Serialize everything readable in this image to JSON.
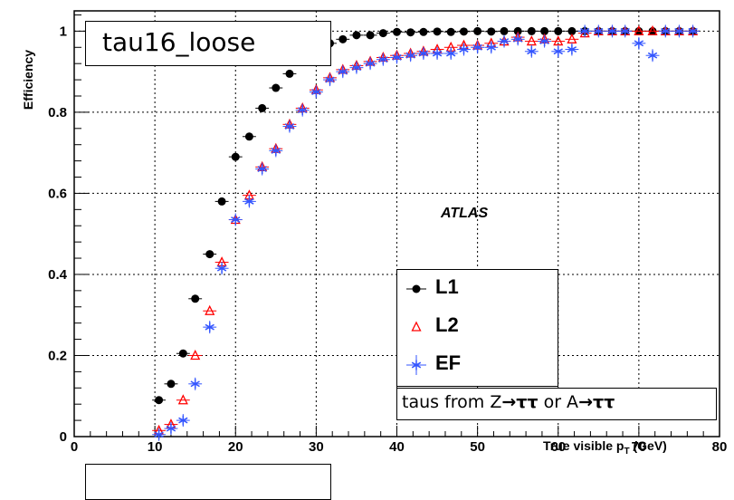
{
  "chart_data": {
    "type": "scatter",
    "title": "tau16_loose",
    "xlabel": "True visible p",
    "xlabel_sub": "T",
    "xlabel_unit": " (GeV)",
    "ylabel": "Efficiency",
    "xlim": [
      0,
      80
    ],
    "ylim": [
      0,
      1.05
    ],
    "xticks": [
      0,
      10,
      20,
      30,
      40,
      50,
      60,
      70,
      80
    ],
    "yticks": [
      0,
      0.2,
      0.4,
      0.6,
      0.8,
      1
    ],
    "ytick_labels": [
      "0",
      "0.2",
      "0.4",
      "0.6",
      "0.8",
      "1"
    ],
    "grid": true,
    "annotation": "ATLAS",
    "legend_position": "center-right",
    "note": {
      "prefix": "taus from Z",
      "arrow": "→",
      "tt": "ττ",
      "or": " or A"
    },
    "series": [
      {
        "name": "L1",
        "color": "#000000",
        "marker": "circle",
        "x": [
          10.5,
          12,
          13.5,
          15,
          16.8,
          18.3,
          20,
          21.7,
          23.3,
          25,
          26.7,
          28.3,
          30,
          31.7,
          33.3,
          35,
          36.7,
          38.3,
          40,
          41.7,
          43.3,
          45,
          46.7,
          48.3,
          50,
          51.7,
          53.3,
          55,
          56.7,
          58.3,
          60,
          61.7,
          63.3,
          65,
          66.7,
          68.3,
          70,
          71.7,
          73.3,
          75,
          76.7
        ],
        "y": [
          0.09,
          0.13,
          0.205,
          0.34,
          0.45,
          0.58,
          0.69,
          0.74,
          0.81,
          0.86,
          0.895,
          0.93,
          0.955,
          0.97,
          0.98,
          0.99,
          0.99,
          0.995,
          0.998,
          0.997,
          0.998,
          0.999,
          0.998,
          0.999,
          1.0,
          0.999,
          1.0,
          1.0,
          1.0,
          1.0,
          1.0,
          1.0,
          1.0,
          1.0,
          1.0,
          1.0,
          1.0,
          1.0,
          1.0,
          1.0,
          1.0
        ]
      },
      {
        "name": "L2",
        "color": "#ff0000",
        "marker": "triangle-open",
        "x": [
          10.5,
          12,
          13.5,
          15,
          16.8,
          18.3,
          20,
          21.7,
          23.3,
          25,
          26.7,
          28.3,
          30,
          31.7,
          33.3,
          35,
          36.7,
          38.3,
          40,
          41.7,
          43.3,
          45,
          46.7,
          48.3,
          50,
          51.7,
          53.3,
          55,
          56.7,
          58.3,
          60,
          61.7,
          63.3,
          65,
          66.7,
          68.3,
          70,
          71.7,
          73.3,
          75,
          76.7
        ],
        "y": [
          0.015,
          0.03,
          0.09,
          0.2,
          0.31,
          0.43,
          0.535,
          0.595,
          0.665,
          0.71,
          0.77,
          0.81,
          0.855,
          0.885,
          0.905,
          0.915,
          0.925,
          0.935,
          0.94,
          0.945,
          0.95,
          0.955,
          0.96,
          0.965,
          0.965,
          0.97,
          0.975,
          0.985,
          0.975,
          0.98,
          0.975,
          0.98,
          0.995,
          1.0,
          1.0,
          1.0,
          1.0,
          1.0,
          1.0,
          1.0,
          1.0
        ]
      },
      {
        "name": "EF",
        "color": "#3355ff",
        "marker": "star",
        "x": [
          10.5,
          12,
          13.5,
          15,
          16.8,
          18.3,
          20,
          21.7,
          23.3,
          25,
          26.7,
          28.3,
          30,
          31.7,
          33.3,
          35,
          36.7,
          38.3,
          40,
          41.7,
          43.3,
          45,
          46.7,
          48.3,
          50,
          51.7,
          53.3,
          55,
          56.7,
          58.3,
          60,
          61.7,
          63.3,
          65,
          66.7,
          68.3,
          70,
          71.7,
          73.3,
          75,
          76.7
        ],
        "y": [
          0.005,
          0.02,
          0.04,
          0.13,
          0.27,
          0.415,
          0.535,
          0.58,
          0.66,
          0.705,
          0.765,
          0.805,
          0.85,
          0.88,
          0.9,
          0.91,
          0.92,
          0.93,
          0.935,
          0.94,
          0.945,
          0.945,
          0.945,
          0.955,
          0.96,
          0.96,
          0.975,
          0.98,
          0.95,
          0.975,
          0.95,
          0.955,
          1.0,
          1.0,
          1.0,
          1.0,
          0.97,
          0.94,
          1.0,
          1.0,
          1.0
        ]
      }
    ]
  }
}
